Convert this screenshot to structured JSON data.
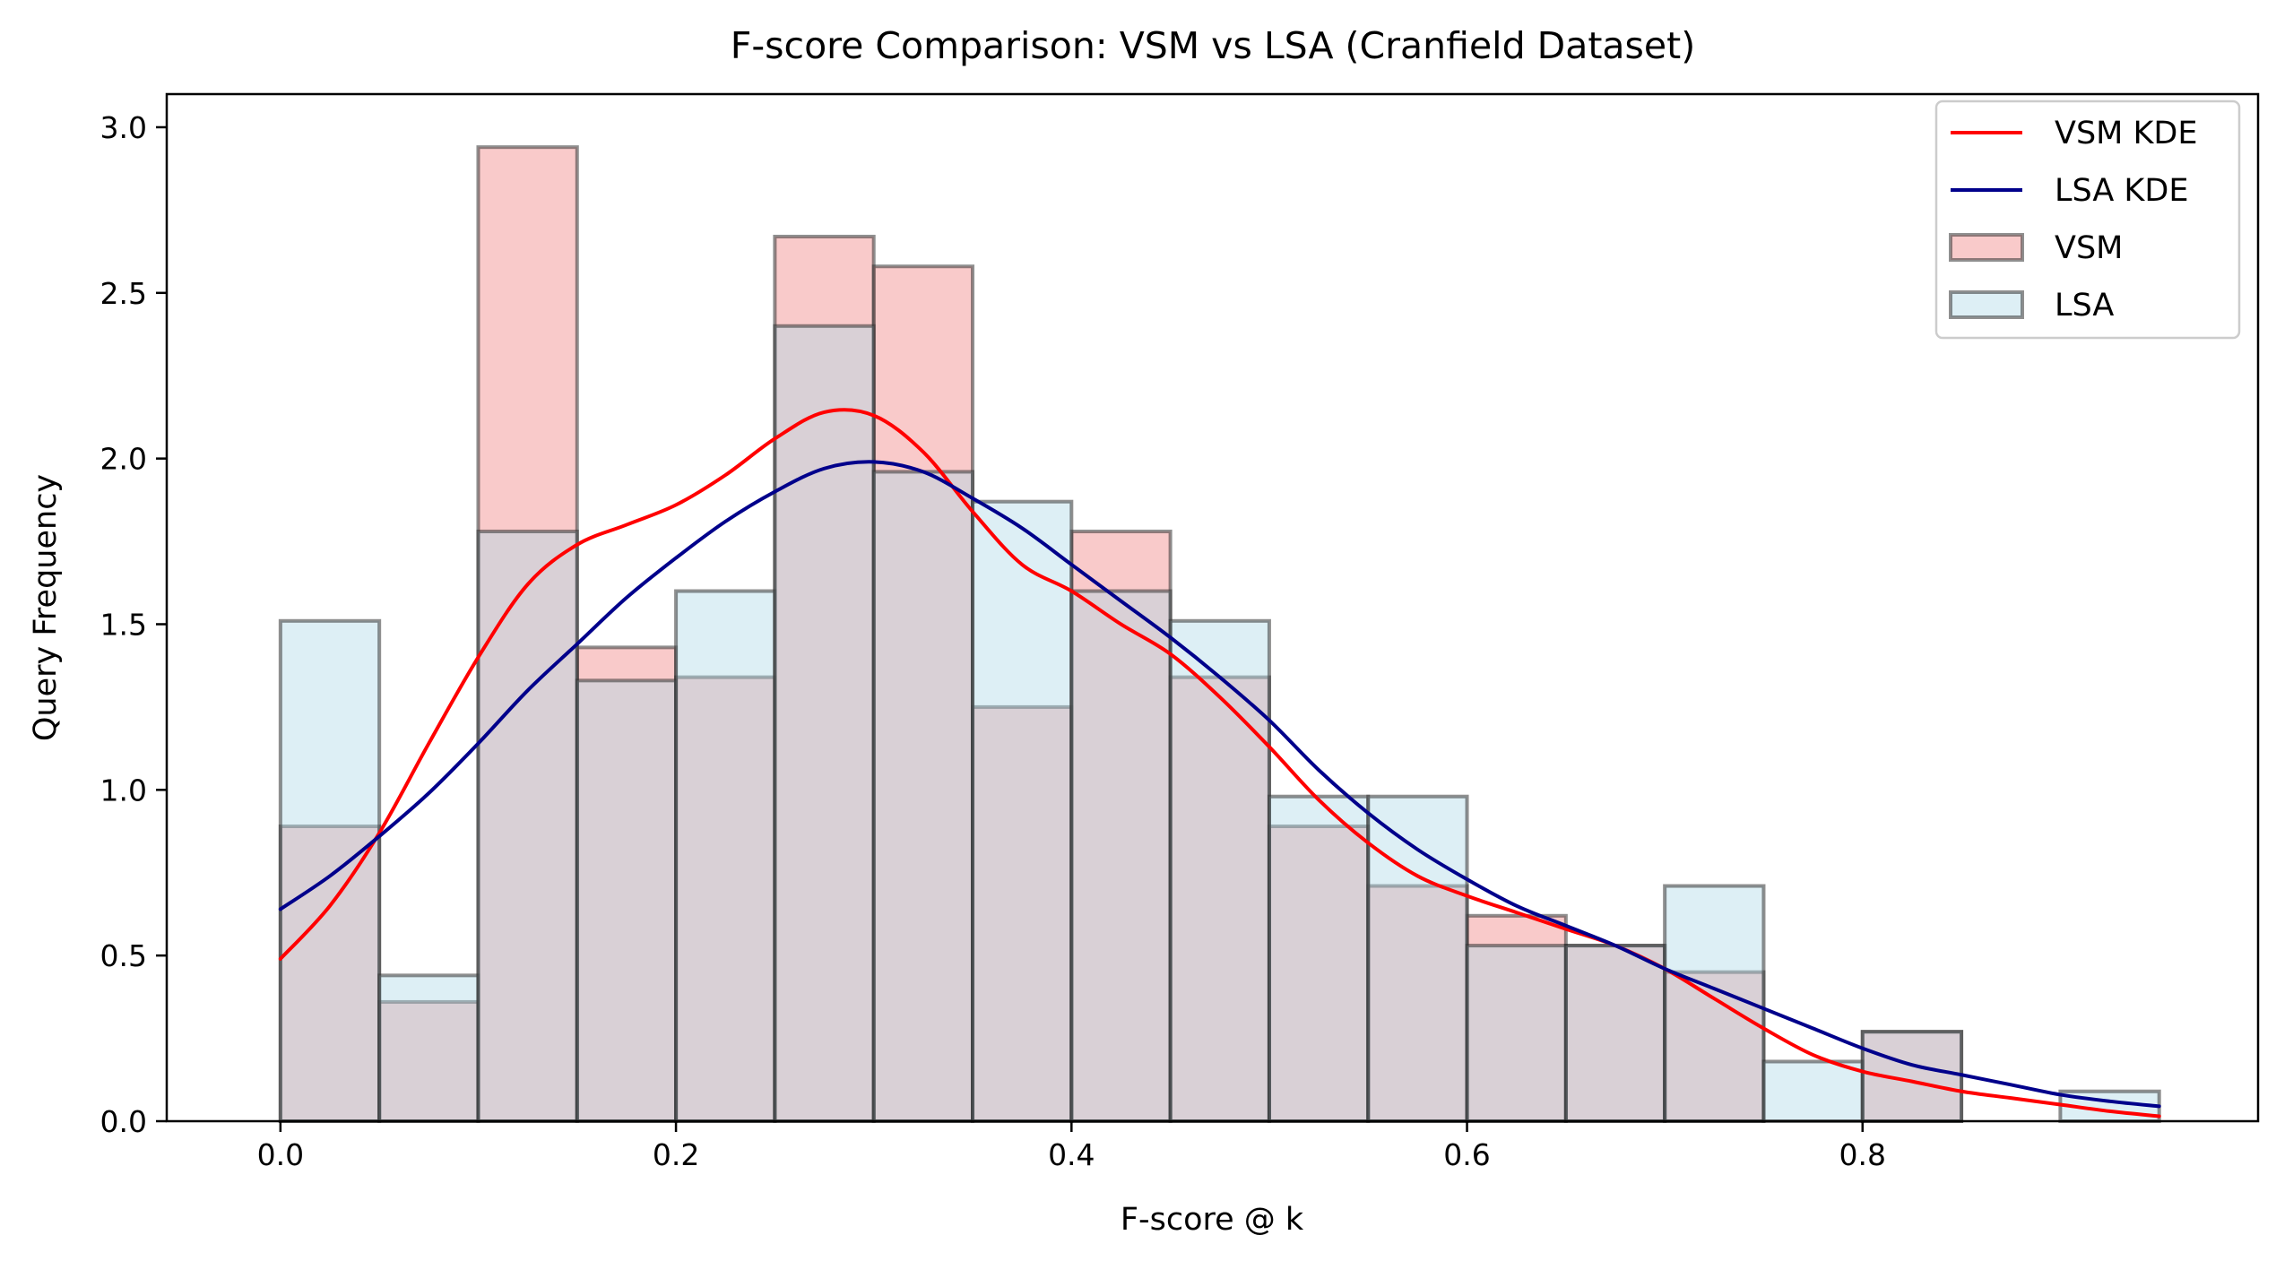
{
  "chart_data": {
    "type": "histogram",
    "title": "F-score Comparison: VSM vs LSA (Cranfield Dataset)",
    "xlabel": "F-score @ k",
    "ylabel": "Query Frequency",
    "xlim": [
      -0.0575,
      1.0
    ],
    "ylim": [
      0,
      3.1
    ],
    "x_ticks": [
      {
        "value": 0.0,
        "label": "0.0"
      },
      {
        "value": 0.2,
        "label": "0.2"
      },
      {
        "value": 0.4,
        "label": "0.4"
      },
      {
        "value": 0.6,
        "label": "0.6"
      },
      {
        "value": 0.8,
        "label": "0.8"
      }
    ],
    "y_ticks": [
      {
        "value": 0.0,
        "label": "0.0"
      },
      {
        "value": 0.5,
        "label": "0.5"
      },
      {
        "value": 1.0,
        "label": "1.0"
      },
      {
        "value": 1.5,
        "label": "1.5"
      },
      {
        "value": 2.0,
        "label": "2.0"
      },
      {
        "value": 2.5,
        "label": "2.5"
      },
      {
        "value": 3.0,
        "label": "3.0"
      }
    ],
    "bin_edges": [
      0.0,
      0.05,
      0.1,
      0.15,
      0.2,
      0.25,
      0.3,
      0.35,
      0.4,
      0.45,
      0.5,
      0.55,
      0.6,
      0.65,
      0.7,
      0.75,
      0.8,
      0.85,
      0.9,
      0.95
    ],
    "histograms": [
      {
        "name": "VSM",
        "fill": "#f08080",
        "fill_opacity": 0.42,
        "values": [
          0.89,
          0.36,
          2.94,
          1.43,
          1.34,
          2.67,
          2.58,
          1.25,
          1.78,
          1.34,
          0.89,
          0.71,
          0.62,
          0.53,
          0.45,
          0.0,
          0.27,
          0.0,
          0.0
        ]
      },
      {
        "name": "LSA",
        "fill": "#add8e6",
        "fill_opacity": 0.42,
        "values": [
          1.51,
          0.44,
          1.78,
          1.33,
          1.6,
          2.4,
          1.96,
          1.87,
          1.6,
          1.51,
          0.98,
          0.98,
          0.53,
          0.53,
          0.71,
          0.18,
          0.27,
          0.0,
          0.09
        ]
      }
    ],
    "kde_series": [
      {
        "name": "VSM KDE",
        "color": "#ff0000",
        "x": [
          0.0,
          0.025,
          0.05,
          0.075,
          0.1,
          0.125,
          0.15,
          0.175,
          0.2,
          0.225,
          0.25,
          0.275,
          0.3,
          0.325,
          0.35,
          0.375,
          0.4,
          0.425,
          0.45,
          0.475,
          0.5,
          0.525,
          0.55,
          0.575,
          0.6,
          0.625,
          0.65,
          0.675,
          0.7,
          0.725,
          0.75,
          0.775,
          0.8,
          0.825,
          0.85,
          0.875,
          0.9,
          0.925,
          0.95
        ],
        "y": [
          0.49,
          0.65,
          0.87,
          1.14,
          1.4,
          1.62,
          1.74,
          1.8,
          1.86,
          1.95,
          2.06,
          2.14,
          2.13,
          2.02,
          1.84,
          1.68,
          1.6,
          1.5,
          1.41,
          1.28,
          1.13,
          0.97,
          0.84,
          0.74,
          0.68,
          0.63,
          0.58,
          0.53,
          0.46,
          0.37,
          0.28,
          0.2,
          0.15,
          0.12,
          0.09,
          0.07,
          0.05,
          0.03,
          0.015
        ]
      },
      {
        "name": "LSA KDE",
        "color": "#00008b",
        "x": [
          0.0,
          0.025,
          0.05,
          0.075,
          0.1,
          0.125,
          0.15,
          0.175,
          0.2,
          0.225,
          0.25,
          0.275,
          0.3,
          0.325,
          0.35,
          0.375,
          0.4,
          0.425,
          0.45,
          0.475,
          0.5,
          0.525,
          0.55,
          0.575,
          0.6,
          0.625,
          0.65,
          0.675,
          0.7,
          0.725,
          0.75,
          0.775,
          0.8,
          0.825,
          0.85,
          0.875,
          0.9,
          0.925,
          0.95
        ],
        "y": [
          0.64,
          0.74,
          0.86,
          0.99,
          1.14,
          1.3,
          1.44,
          1.58,
          1.7,
          1.81,
          1.9,
          1.97,
          1.99,
          1.96,
          1.88,
          1.79,
          1.68,
          1.57,
          1.46,
          1.34,
          1.21,
          1.06,
          0.93,
          0.82,
          0.73,
          0.65,
          0.59,
          0.53,
          0.46,
          0.4,
          0.34,
          0.28,
          0.22,
          0.17,
          0.14,
          0.11,
          0.08,
          0.06,
          0.045
        ]
      }
    ],
    "bar_edge_color": "#333333",
    "overlap_color": "#dbcdd5",
    "grid": false,
    "legend": {
      "position": "top-right",
      "entries": [
        {
          "label": "VSM KDE",
          "kind": "line",
          "color": "#ff0000"
        },
        {
          "label": "LSA KDE",
          "kind": "line",
          "color": "#00008b"
        },
        {
          "label": "VSM",
          "kind": "patch",
          "color": "#f08080"
        },
        {
          "label": "LSA",
          "kind": "patch",
          "color": "#add8e6"
        }
      ]
    }
  }
}
